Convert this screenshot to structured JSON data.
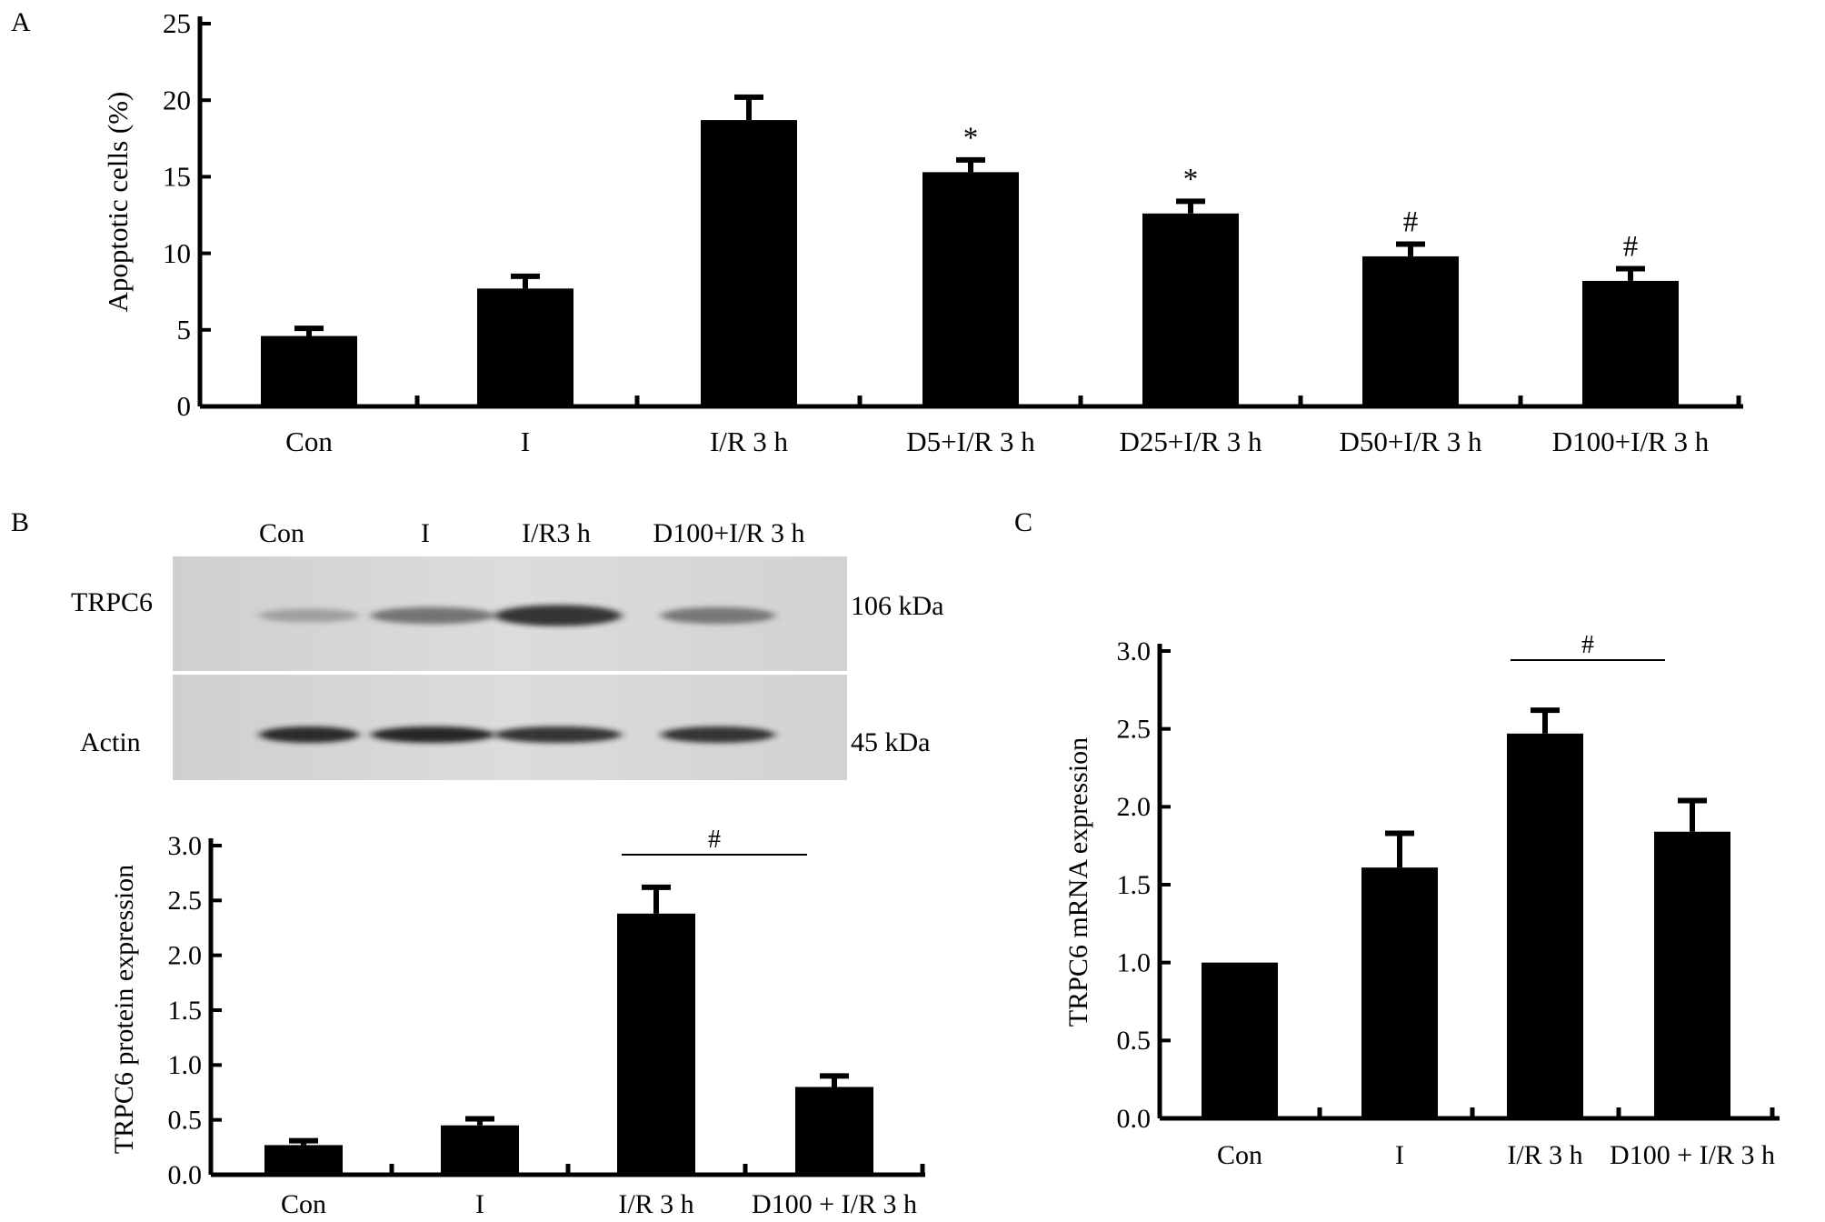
{
  "panels": {
    "A": {
      "label": "A"
    },
    "B": {
      "label": "B",
      "blot_rows": [
        "TRPC6",
        "Actin"
      ],
      "blot_columns": [
        "Con",
        "I",
        "I/R3 h",
        "D100+I/R 3 h"
      ],
      "blot_sizes": [
        "106 kDa",
        "45 kDa"
      ],
      "blot_band_intensity": [
        [
          0.35,
          0.62,
          0.95,
          0.6
        ],
        [
          0.98,
          1.0,
          0.95,
          0.95
        ]
      ]
    },
    "C": {
      "label": "C"
    }
  },
  "chart_data": [
    {
      "id": "A",
      "type": "bar",
      "categories": [
        "Con",
        "I",
        "I/R 3 h",
        "D5+I/R 3 h",
        "D25+I/R 3 h",
        "D50+I/R 3 h",
        "D100+I/R 3 h"
      ],
      "values": [
        4.6,
        7.7,
        18.7,
        15.3,
        12.6,
        9.8,
        8.2
      ],
      "errors": [
        0.5,
        0.8,
        1.5,
        0.8,
        0.8,
        0.8,
        0.8
      ],
      "annotations": [
        "",
        "",
        "",
        "*",
        "*",
        "#",
        "#"
      ],
      "ylabel": "Apoptotic cells (%)",
      "yticks": [
        "0",
        "5",
        "10",
        "15",
        "20",
        "25"
      ],
      "ylim": [
        0,
        25
      ]
    },
    {
      "id": "B",
      "type": "bar",
      "categories": [
        "Con",
        "I",
        "I/R 3 h",
        "D100 + I/R 3 h"
      ],
      "values": [
        0.27,
        0.45,
        2.38,
        0.8
      ],
      "errors": [
        0.04,
        0.06,
        0.24,
        0.1
      ],
      "ylabel": "TRPC6 protein expression",
      "yticks": [
        "0.0",
        "0.5",
        "1.0",
        "1.5",
        "2.0",
        "2.5",
        "3.0"
      ],
      "ylim": [
        0,
        3
      ],
      "bracket": {
        "from": 2,
        "to": 3,
        "label": "#"
      }
    },
    {
      "id": "C",
      "type": "bar",
      "categories": [
        "Con",
        "I",
        "I/R 3 h",
        "D100 + I/R 3 h"
      ],
      "values": [
        1.0,
        1.61,
        2.47,
        1.84
      ],
      "errors": [
        0.0,
        0.22,
        0.15,
        0.2
      ],
      "ylabel": "TRPC6 mRNA expression",
      "yticks": [
        "0.0",
        "0.5",
        "1.0",
        "1.5",
        "2.0",
        "2.5",
        "3.0"
      ],
      "ylim": [
        0,
        3
      ],
      "bracket": {
        "from": 2,
        "to": 3,
        "label": "#"
      }
    }
  ]
}
